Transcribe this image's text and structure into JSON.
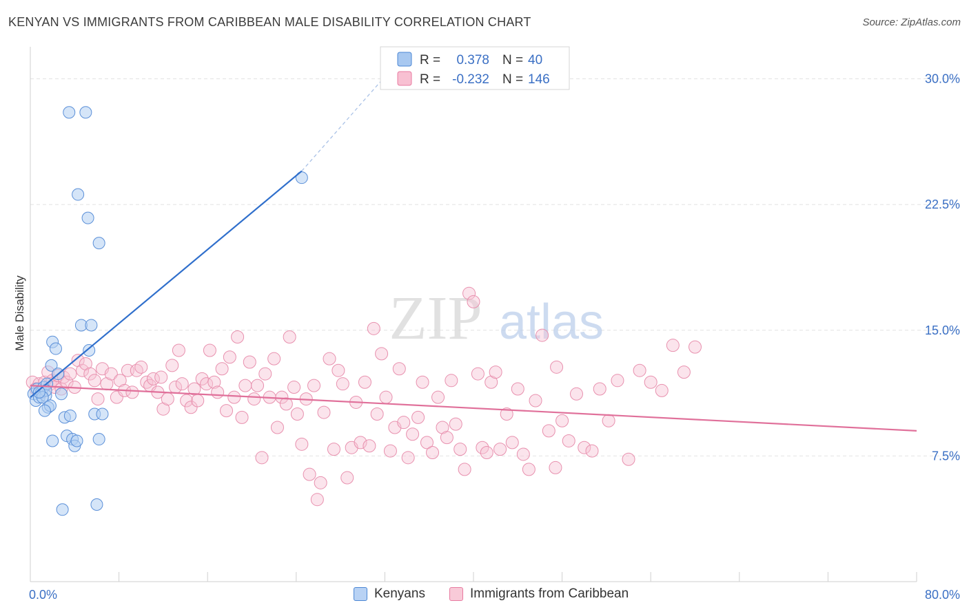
{
  "title": "KENYAN VS IMMIGRANTS FROM CARIBBEAN MALE DISABILITY CORRELATION CHART",
  "source": "Source: ZipAtlas.com",
  "watermark": {
    "zip": "ZIP",
    "atlas": "atlas"
  },
  "legend_top": {
    "rows": [
      {
        "r_label": "R =",
        "r_value": "0.378",
        "n_label": "N =",
        "n_value": "40",
        "color": "#4a86d4",
        "fill": "#a8c8f0"
      },
      {
        "r_label": "R =",
        "r_value": "-0.232",
        "n_label": "N =",
        "n_value": "146",
        "color": "#e87aa0",
        "fill": "#f8c0d2"
      }
    ]
  },
  "legend_bottom": {
    "items": [
      {
        "label": "Kenyans",
        "color": "#4a86d4",
        "fill": "#b8d2f4"
      },
      {
        "label": "Immigrants from Caribbean",
        "color": "#e87aa0",
        "fill": "#f8cad8"
      }
    ]
  },
  "chart_data": {
    "type": "scatter",
    "title": "KENYAN VS IMMIGRANTS FROM CARIBBEAN MALE DISABILITY CORRELATION CHART",
    "xlabel": "",
    "ylabel": "Male Disability",
    "xlim": [
      0,
      80
    ],
    "ylim": [
      0,
      31.5
    ],
    "x_tick_labels": [
      "0.0%",
      "80.0%"
    ],
    "y_ticks": [
      7.5,
      15.0,
      22.5,
      30.0
    ],
    "y_tick_labels": [
      "7.5%",
      "15.0%",
      "22.5%",
      "30.0%"
    ],
    "grid": true,
    "legend_position": "top-center",
    "series": [
      {
        "name": "Kenyans",
        "color": "#4a86d4",
        "points": [
          [
            0.3,
            11.2
          ],
          [
            0.5,
            10.8
          ],
          [
            0.6,
            11.5
          ],
          [
            0.8,
            11.0
          ],
          [
            1.0,
            11.3
          ],
          [
            1.2,
            11.6
          ],
          [
            1.4,
            11.1
          ],
          [
            1.6,
            10.4
          ],
          [
            1.5,
            11.8
          ],
          [
            1.8,
            10.5
          ],
          [
            1.4,
            11.4
          ],
          [
            1.3,
            10.2
          ],
          [
            1.9,
            12.9
          ],
          [
            2.0,
            14.3
          ],
          [
            2.3,
            13.9
          ],
          [
            2.5,
            12.4
          ],
          [
            2.8,
            11.2
          ],
          [
            3.1,
            9.8
          ],
          [
            3.3,
            8.7
          ],
          [
            3.6,
            9.9
          ],
          [
            3.8,
            8.5
          ],
          [
            4.0,
            8.1
          ],
          [
            4.2,
            8.4
          ],
          [
            4.6,
            15.3
          ],
          [
            5.3,
            13.8
          ],
          [
            5.5,
            15.3
          ],
          [
            5.8,
            10.0
          ],
          [
            6.2,
            8.5
          ],
          [
            6.5,
            10.0
          ],
          [
            6.0,
            4.6
          ],
          [
            2.0,
            8.4
          ],
          [
            2.9,
            4.3
          ],
          [
            5.2,
            21.7
          ],
          [
            3.5,
            28.0
          ],
          [
            5.0,
            28.0
          ],
          [
            4.3,
            23.1
          ],
          [
            6.2,
            20.2
          ],
          [
            1.1,
            11.0
          ],
          [
            24.5,
            24.1
          ],
          [
            0.8,
            11.3
          ]
        ],
        "trend": {
          "x": [
            0.0,
            24.5
          ],
          "y": [
            11.0,
            24.5
          ],
          "dashed_to": [
            32.5,
            30.5
          ]
        }
      },
      {
        "name": "Immigrants from Caribbean",
        "color": "#e87aa0",
        "points": [
          [
            0.2,
            11.9
          ],
          [
            0.5,
            11.5
          ],
          [
            0.8,
            11.8
          ],
          [
            1.0,
            11.3
          ],
          [
            1.3,
            11.9
          ],
          [
            1.6,
            12.5
          ],
          [
            1.8,
            11.8
          ],
          [
            2.0,
            12.0
          ],
          [
            2.2,
            11.6
          ],
          [
            2.5,
            12.3
          ],
          [
            2.8,
            11.5
          ],
          [
            3.0,
            12.2
          ],
          [
            3.3,
            11.9
          ],
          [
            3.6,
            12.4
          ],
          [
            4.0,
            11.6
          ],
          [
            4.3,
            13.2
          ],
          [
            4.7,
            12.6
          ],
          [
            5.0,
            13.0
          ],
          [
            5.4,
            12.4
          ],
          [
            5.8,
            12.0
          ],
          [
            6.1,
            10.9
          ],
          [
            6.5,
            12.7
          ],
          [
            6.9,
            11.8
          ],
          [
            7.3,
            12.4
          ],
          [
            7.8,
            11.0
          ],
          [
            8.1,
            12.0
          ],
          [
            8.5,
            11.4
          ],
          [
            8.8,
            12.6
          ],
          [
            9.2,
            11.3
          ],
          [
            9.6,
            12.6
          ],
          [
            10.0,
            12.8
          ],
          [
            10.5,
            11.9
          ],
          [
            10.8,
            11.7
          ],
          [
            11.1,
            12.1
          ],
          [
            11.5,
            11.3
          ],
          [
            11.8,
            12.2
          ],
          [
            12.0,
            10.3
          ],
          [
            12.4,
            10.9
          ],
          [
            12.8,
            12.9
          ],
          [
            13.1,
            11.6
          ],
          [
            13.4,
            13.8
          ],
          [
            13.7,
            11.8
          ],
          [
            14.1,
            10.8
          ],
          [
            14.5,
            10.4
          ],
          [
            14.8,
            11.5
          ],
          [
            15.1,
            10.8
          ],
          [
            15.5,
            12.1
          ],
          [
            15.9,
            11.8
          ],
          [
            16.2,
            13.8
          ],
          [
            16.6,
            11.9
          ],
          [
            16.9,
            11.3
          ],
          [
            17.3,
            12.7
          ],
          [
            17.7,
            10.2
          ],
          [
            18.0,
            13.4
          ],
          [
            18.4,
            11.0
          ],
          [
            18.7,
            14.6
          ],
          [
            19.1,
            9.8
          ],
          [
            19.4,
            11.7
          ],
          [
            19.8,
            13.1
          ],
          [
            20.2,
            10.9
          ],
          [
            20.5,
            11.7
          ],
          [
            20.9,
            7.4
          ],
          [
            21.2,
            12.4
          ],
          [
            21.6,
            11.0
          ],
          [
            22.0,
            13.3
          ],
          [
            22.3,
            9.2
          ],
          [
            22.7,
            11.0
          ],
          [
            23.1,
            10.6
          ],
          [
            23.4,
            14.6
          ],
          [
            23.8,
            11.6
          ],
          [
            24.1,
            10.0
          ],
          [
            24.5,
            8.2
          ],
          [
            24.9,
            10.9
          ],
          [
            25.2,
            6.4
          ],
          [
            25.6,
            11.7
          ],
          [
            25.9,
            4.9
          ],
          [
            26.2,
            5.9
          ],
          [
            26.5,
            10.1
          ],
          [
            27.0,
            13.3
          ],
          [
            27.4,
            7.9
          ],
          [
            27.8,
            12.6
          ],
          [
            28.2,
            11.8
          ],
          [
            28.6,
            6.2
          ],
          [
            29.0,
            8.0
          ],
          [
            29.4,
            10.7
          ],
          [
            29.8,
            8.3
          ],
          [
            30.2,
            11.9
          ],
          [
            30.6,
            8.1
          ],
          [
            31.0,
            15.1
          ],
          [
            31.3,
            10.0
          ],
          [
            31.7,
            13.6
          ],
          [
            32.1,
            11.0
          ],
          [
            32.5,
            7.8
          ],
          [
            32.9,
            9.2
          ],
          [
            33.3,
            12.7
          ],
          [
            33.7,
            9.5
          ],
          [
            34.1,
            7.4
          ],
          [
            34.5,
            8.8
          ],
          [
            35.0,
            9.8
          ],
          [
            35.4,
            11.9
          ],
          [
            35.8,
            8.3
          ],
          [
            36.3,
            7.7
          ],
          [
            36.8,
            11.0
          ],
          [
            37.2,
            9.2
          ],
          [
            37.6,
            8.6
          ],
          [
            38.0,
            12.0
          ],
          [
            38.4,
            9.4
          ],
          [
            38.8,
            7.9
          ],
          [
            39.2,
            6.7
          ],
          [
            39.6,
            17.2
          ],
          [
            40.0,
            16.7
          ],
          [
            40.4,
            12.4
          ],
          [
            40.8,
            8.0
          ],
          [
            41.2,
            7.7
          ],
          [
            41.6,
            11.9
          ],
          [
            42.0,
            12.5
          ],
          [
            42.4,
            7.9
          ],
          [
            43.0,
            10.0
          ],
          [
            43.5,
            8.3
          ],
          [
            44.0,
            11.5
          ],
          [
            44.5,
            7.6
          ],
          [
            45.0,
            6.7
          ],
          [
            45.6,
            10.8
          ],
          [
            46.2,
            14.7
          ],
          [
            46.8,
            9.0
          ],
          [
            47.4,
            6.8
          ],
          [
            48.0,
            9.6
          ],
          [
            48.6,
            8.4
          ],
          [
            49.3,
            11.2
          ],
          [
            50.0,
            8.0
          ],
          [
            50.7,
            7.8
          ],
          [
            51.4,
            11.5
          ],
          [
            52.2,
            9.6
          ],
          [
            53.0,
            12.0
          ],
          [
            54.0,
            7.3
          ],
          [
            55.0,
            12.6
          ],
          [
            56.0,
            11.9
          ],
          [
            57.0,
            11.4
          ],
          [
            58.0,
            14.1
          ],
          [
            59.0,
            12.5
          ],
          [
            60.0,
            14.0
          ],
          [
            47.5,
            12.8
          ]
        ],
        "trend": {
          "x": [
            0.0,
            80.0
          ],
          "y": [
            11.7,
            9.0
          ]
        }
      }
    ]
  }
}
